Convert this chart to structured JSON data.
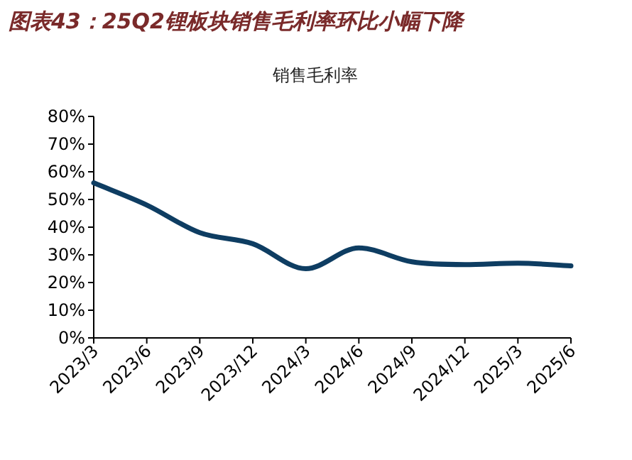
{
  "chart_data": {
    "type": "line",
    "title": "图表43：25Q2锂板块销售毛利率环比小幅下降",
    "subtitle": "销售毛利率",
    "categories": [
      "2023/3",
      "2023/6",
      "2023/9",
      "2023/12",
      "2024/3",
      "2024/6",
      "2024/9",
      "2024/12",
      "2025/3",
      "2025/6"
    ],
    "series": [
      {
        "color": "#0e3d62",
        "values": [
          56,
          48,
          38,
          34,
          25,
          32.5,
          27.5,
          26.5,
          27,
          26
        ]
      }
    ],
    "ylim": [
      0,
      80
    ],
    "yticks": [
      {
        "value": 0,
        "label": "0%"
      },
      {
        "value": 10,
        "label": "10%"
      },
      {
        "value": 20,
        "label": "20%"
      },
      {
        "value": 30,
        "label": "30%"
      },
      {
        "value": 40,
        "label": "40%"
      },
      {
        "value": 50,
        "label": "50%"
      },
      {
        "value": 60,
        "label": "60%"
      },
      {
        "value": 70,
        "label": "70%"
      },
      {
        "value": 80,
        "label": "80%"
      }
    ],
    "grid": false
  }
}
